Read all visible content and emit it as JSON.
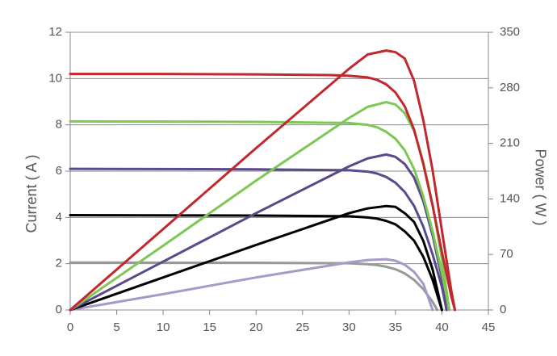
{
  "chart_data": {
    "type": "line",
    "y_label": "Current ( A )",
    "y2_label": "Power ( W )",
    "xlim": [
      0,
      45
    ],
    "xticks": [
      0,
      5,
      10,
      15,
      20,
      25,
      30,
      35,
      40,
      45
    ],
    "ylim": [
      0,
      12
    ],
    "yticks": [
      0,
      2,
      4,
      6,
      8,
      10,
      12
    ],
    "y2lim": [
      0,
      350
    ],
    "y2ticks": [
      0,
      70,
      140,
      210,
      280,
      350
    ],
    "grid": true,
    "series": [
      {
        "color": "#999999",
        "x": [
          0,
          20,
          30,
          32,
          33,
          34,
          35,
          36,
          37,
          38,
          39,
          39.5
        ],
        "values": [
          2.05,
          2.04,
          2.02,
          1.98,
          1.94,
          1.87,
          1.76,
          1.58,
          1.3,
          0.9,
          0.35,
          0
        ]
      },
      {
        "color": "#a899c8",
        "axis": "y2",
        "x": [
          0,
          10,
          20,
          30,
          32,
          34,
          35,
          36,
          37,
          38,
          39
        ],
        "values": [
          0,
          20,
          41,
          60,
          63,
          64,
          62,
          57,
          48,
          33,
          0
        ]
      },
      {
        "color": "#000000",
        "x": [
          0,
          20,
          30,
          32,
          33,
          34,
          35,
          36,
          37,
          38,
          39,
          40
        ],
        "values": [
          4.1,
          4.08,
          4.05,
          4.0,
          3.95,
          3.85,
          3.7,
          3.4,
          3.0,
          2.3,
          1.3,
          0
        ]
      },
      {
        "color": "#000000",
        "axis": "y2",
        "x": [
          0,
          10,
          20,
          30,
          32,
          34,
          35,
          36,
          37,
          38,
          39,
          40
        ],
        "values": [
          0,
          41,
          82,
          122,
          128,
          131,
          130,
          122,
          111,
          87,
          51,
          0
        ]
      },
      {
        "color": "#5b4a8a",
        "x": [
          0,
          20,
          30,
          32,
          33,
          34,
          35,
          36,
          37,
          38,
          39,
          40,
          40.5
        ],
        "values": [
          6.1,
          6.08,
          6.04,
          5.98,
          5.9,
          5.75,
          5.5,
          5.1,
          4.5,
          3.6,
          2.4,
          1.0,
          0
        ]
      },
      {
        "color": "#5b4a8a",
        "axis": "y2",
        "x": [
          0,
          10,
          20,
          30,
          32,
          34,
          35,
          36,
          37,
          38,
          39,
          40,
          40.5
        ],
        "values": [
          0,
          61,
          122,
          181,
          191,
          196,
          193,
          184,
          167,
          137,
          94,
          40,
          0
        ]
      },
      {
        "color": "#7dc855",
        "x": [
          0,
          20,
          30,
          32,
          33,
          34,
          35,
          36,
          37,
          38,
          39,
          40,
          40.8
        ],
        "values": [
          8.15,
          8.13,
          8.08,
          8.0,
          7.9,
          7.7,
          7.4,
          6.9,
          6.1,
          4.9,
          3.4,
          1.6,
          0
        ]
      },
      {
        "color": "#7dc855",
        "axis": "y2",
        "x": [
          0,
          10,
          20,
          30,
          32,
          34,
          35,
          36,
          37,
          38,
          39,
          40,
          40.8
        ],
        "values": [
          0,
          81,
          163,
          242,
          256,
          262,
          259,
          248,
          226,
          186,
          133,
          64,
          0
        ]
      },
      {
        "color": "#c0282d",
        "x": [
          0,
          10,
          20,
          28,
          30,
          32,
          33,
          34,
          35,
          36,
          37,
          38,
          39,
          40,
          41,
          41.4
        ],
        "values": [
          10.2,
          10.2,
          10.18,
          10.15,
          10.12,
          10.05,
          9.95,
          9.75,
          9.4,
          8.8,
          7.8,
          6.3,
          4.5,
          2.5,
          0.6,
          0
        ]
      },
      {
        "color": "#c0282d",
        "axis": "y2",
        "x": [
          0,
          5,
          10,
          15,
          20,
          25,
          30,
          32,
          34,
          35,
          36,
          37,
          38,
          39,
          40,
          41,
          41.4
        ],
        "values": [
          0,
          51,
          102,
          153,
          204,
          254,
          304,
          322,
          327,
          325,
          317,
          289,
          239,
          176,
          100,
          25,
          0
        ]
      }
    ]
  }
}
